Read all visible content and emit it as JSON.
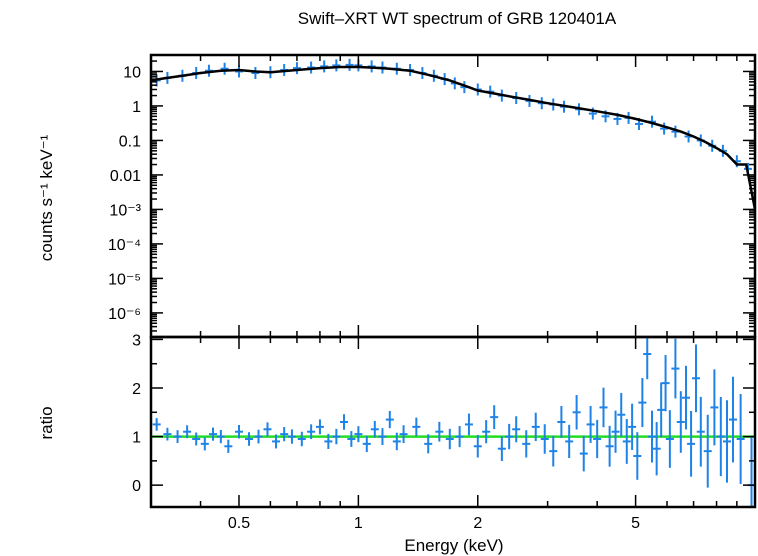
{
  "chart_data": [
    {
      "type": "line",
      "title": "Swift–XRT WT spectrum of GRB 120401A",
      "ylabel": "counts s⁻¹ keV⁻¹",
      "xscale": "log",
      "yscale": "log",
      "xlim": [
        0.3,
        10
      ],
      "ylim": [
        2e-07,
        30
      ],
      "ytick_labels": [
        "10",
        "1",
        "0.1",
        "0.01",
        "10⁻³",
        "10⁻⁴",
        "10⁻⁵",
        "10⁻⁶"
      ],
      "ytick_values": [
        10,
        1,
        0.1,
        0.01,
        0.001,
        0.0001,
        1e-05,
        1e-06
      ],
      "colors": {
        "data": "#1e82e6",
        "model": "#000000"
      },
      "series": [
        {
          "kind": "data",
          "x": [
            0.31,
            0.33,
            0.36,
            0.39,
            0.42,
            0.46,
            0.5,
            0.55,
            0.6,
            0.65,
            0.7,
            0.76,
            0.82,
            0.88,
            0.95,
            1.0,
            1.08,
            1.15,
            1.25,
            1.35,
            1.45,
            1.55,
            1.65,
            1.75,
            1.85,
            2.0,
            2.15,
            2.3,
            2.5,
            2.7,
            2.9,
            3.1,
            3.3,
            3.6,
            3.9,
            4.2,
            4.5,
            4.8,
            5.1,
            5.5,
            5.9,
            6.3,
            6.8,
            7.3,
            7.8,
            8.3,
            9.0,
            9.6
          ],
          "y": [
            5.5,
            6.5,
            7.5,
            9,
            10.5,
            12,
            10,
            9,
            9.5,
            11,
            12.5,
            13,
            14,
            15,
            15.5,
            15,
            14,
            13,
            12,
            11,
            9,
            7.5,
            6,
            4.5,
            3.5,
            3.0,
            2.6,
            2.0,
            1.7,
            1.4,
            1.2,
            1.1,
            0.95,
            0.8,
            0.6,
            0.5,
            0.42,
            0.45,
            0.3,
            0.35,
            0.22,
            0.18,
            0.13,
            0.1,
            0.07,
            0.05,
            0.025,
            0.015
          ]
        },
        {
          "kind": "model",
          "x": [
            0.3,
            0.33,
            0.36,
            0.4,
            0.45,
            0.5,
            0.55,
            0.6,
            0.7,
            0.8,
            0.9,
            1.0,
            1.1,
            1.2,
            1.35,
            1.5,
            1.7,
            1.9,
            2.0,
            2.2,
            2.4,
            2.7,
            3.0,
            3.5,
            4.0,
            4.5,
            5.0,
            5.5,
            6.0,
            6.5,
            7.0,
            7.5,
            8.0,
            8.5,
            9.0,
            9.5,
            10.0
          ],
          "y": [
            5.5,
            6.5,
            7.5,
            9,
            10.5,
            11.0,
            10.0,
            9.5,
            11.0,
            12.5,
            13.5,
            13.5,
            12.8,
            12.0,
            10.5,
            8.0,
            5.5,
            3.5,
            2.8,
            2.3,
            1.9,
            1.5,
            1.2,
            0.9,
            0.7,
            0.55,
            0.42,
            0.32,
            0.24,
            0.18,
            0.13,
            0.09,
            0.06,
            0.04,
            0.02,
            0.02,
            0.001
          ]
        }
      ]
    },
    {
      "type": "line",
      "xlabel": "Energy (keV)",
      "ylabel": "ratio",
      "xscale": "log",
      "xlim": [
        0.3,
        10
      ],
      "ylim": [
        -0.45,
        3.05
      ],
      "xtick_labels": [
        "0.5",
        "1",
        "2",
        "5"
      ],
      "xtick_values": [
        0.5,
        1,
        2,
        5
      ],
      "ytick_labels": [
        "0",
        "1",
        "2",
        "3"
      ],
      "ytick_values": [
        0,
        1,
        2,
        3
      ],
      "colors": {
        "data": "#1e82e6",
        "reference": "#22dd22"
      },
      "reference_line": 1,
      "series": [
        {
          "kind": "data",
          "x": [
            0.31,
            0.33,
            0.35,
            0.37,
            0.39,
            0.41,
            0.43,
            0.45,
            0.47,
            0.5,
            0.53,
            0.56,
            0.59,
            0.62,
            0.65,
            0.68,
            0.72,
            0.76,
            0.8,
            0.84,
            0.88,
            0.92,
            0.96,
            1.0,
            1.05,
            1.1,
            1.15,
            1.2,
            1.25,
            1.3,
            1.4,
            1.5,
            1.6,
            1.7,
            1.8,
            1.9,
            2.0,
            2.1,
            2.2,
            2.3,
            2.4,
            2.5,
            2.65,
            2.8,
            2.95,
            3.1,
            3.25,
            3.4,
            3.55,
            3.7,
            3.85,
            4.0,
            4.15,
            4.3,
            4.45,
            4.6,
            4.75,
            4.9,
            5.05,
            5.2,
            5.35,
            5.5,
            5.65,
            5.8,
            5.95,
            6.1,
            6.3,
            6.5,
            6.7,
            6.9,
            7.1,
            7.3,
            7.6,
            7.9,
            8.2,
            8.5,
            8.8,
            9.2,
            9.8
          ],
          "y": [
            1.25,
            1.05,
            1.0,
            1.1,
            0.95,
            0.85,
            1.05,
            1.0,
            0.8,
            1.1,
            0.95,
            1.0,
            1.15,
            0.9,
            1.05,
            1.0,
            0.95,
            1.1,
            1.2,
            0.9,
            1.0,
            1.3,
            0.95,
            1.05,
            0.85,
            1.15,
            1.0,
            1.35,
            0.9,
            1.05,
            1.2,
            0.85,
            1.1,
            0.95,
            1.0,
            1.25,
            0.8,
            1.1,
            1.4,
            0.75,
            1.0,
            1.15,
            0.85,
            1.2,
            0.95,
            0.7,
            1.3,
            0.9,
            1.5,
            0.65,
            1.25,
            0.95,
            1.6,
            0.8,
            1.1,
            1.45,
            0.9,
            1.2,
            0.6,
            1.7,
            2.7,
            1.0,
            0.75,
            1.55,
            2.1,
            0.95,
            2.4,
            1.3,
            1.8,
            0.85,
            2.2,
            1.1,
            0.7,
            1.6,
            1.0,
            0.9,
            1.35,
            0.95,
            0.0
          ]
        }
      ]
    }
  ]
}
